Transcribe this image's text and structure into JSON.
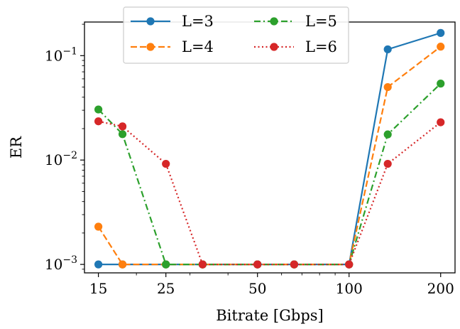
{
  "chart_data": {
    "type": "line",
    "xlabel": "Bitrate [Gbps]",
    "ylabel": "ER",
    "x_scale": "log",
    "y_scale": "log",
    "xlim": [
      13.5,
      223
    ],
    "ylim": [
      0.00083,
      0.21
    ],
    "x_ticks": [
      15,
      25,
      50,
      100,
      200
    ],
    "x_tick_labels": [
      "15",
      "25",
      "50",
      "100",
      "200"
    ],
    "y_ticks": [
      0.001,
      0.01,
      0.1
    ],
    "y_tick_labels": [
      {
        "base": "10",
        "exp": "−3"
      },
      {
        "base": "10",
        "exp": "−2"
      },
      {
        "base": "10",
        "exp": "−1"
      }
    ],
    "legend_position": "top-center",
    "legend_columns": 2,
    "series": [
      {
        "name": "L=3",
        "color": "#1f77b4",
        "dash": "solid",
        "points": [
          [
            15,
            0.001
          ],
          [
            18,
            0.001
          ],
          [
            25,
            0.001
          ],
          [
            33,
            0.001
          ],
          [
            50,
            0.001
          ],
          [
            66,
            0.001
          ],
          [
            100,
            0.001
          ],
          [
            134,
            0.115
          ],
          [
            200,
            0.165
          ]
        ]
      },
      {
        "name": "L=4",
        "color": "#ff7f0e",
        "dash": "dashed",
        "points": [
          [
            15,
            0.0023
          ],
          [
            18,
            0.001
          ],
          [
            25,
            0.001
          ],
          [
            33,
            0.001
          ],
          [
            50,
            0.001
          ],
          [
            66,
            0.001
          ],
          [
            100,
            0.001
          ],
          [
            134,
            0.05
          ],
          [
            200,
            0.122
          ]
        ]
      },
      {
        "name": "L=5",
        "color": "#2ca02c",
        "dash": "dashdot",
        "points": [
          [
            15,
            0.0305
          ],
          [
            18,
            0.0177
          ],
          [
            25,
            0.001
          ],
          [
            33,
            0.001
          ],
          [
            50,
            0.001
          ],
          [
            66,
            0.001
          ],
          [
            100,
            0.001
          ],
          [
            134,
            0.0176
          ],
          [
            200,
            0.054
          ]
        ]
      },
      {
        "name": "L=6",
        "color": "#d62728",
        "dash": "dotted",
        "points": [
          [
            15,
            0.0235
          ],
          [
            18,
            0.021
          ],
          [
            25,
            0.0092
          ],
          [
            33,
            0.001
          ],
          [
            50,
            0.001
          ],
          [
            66,
            0.001
          ],
          [
            100,
            0.001
          ],
          [
            134,
            0.0092
          ],
          [
            200,
            0.023
          ]
        ]
      }
    ]
  }
}
